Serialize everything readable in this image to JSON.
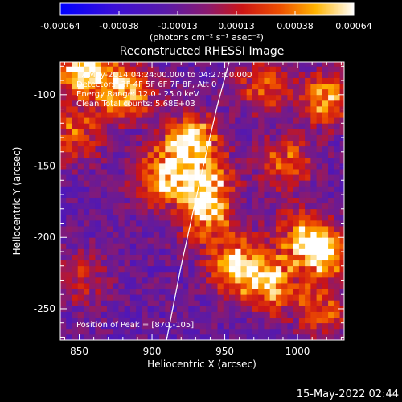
{
  "colorbar": {
    "ticks": [
      "-0.00064",
      "-0.00038",
      "-0.00013",
      "0.00013",
      "0.00038",
      "0.00064"
    ],
    "units": "(photons cm⁻² s⁻¹ asec⁻²)"
  },
  "plot": {
    "title": "Reconstructed RHESSI Image",
    "annotations": [
      "7-May-2014 04:24:00.000 to 04:27:00.000",
      "Detectors: 3F 4F 5F 6F 7F 8F, Att 0",
      "Energy Range: 12.0 - 25.0 keV",
      "Clean    Total counts: 5.68E+03"
    ],
    "peak_label": "Position of Peak = [870,-105]"
  },
  "footer": {
    "timestamp": "15-May-2022 02:44"
  },
  "chart_data": {
    "type": "heatmap",
    "title": "Reconstructed RHESSI Image",
    "xlabel": "Heliocentric X (arcsec)",
    "ylabel": "Heliocentric Y (arcsec)",
    "xlim": [
      837,
      1032
    ],
    "ylim": [
      -272,
      -77
    ],
    "xticks": [
      850,
      900,
      950,
      1000
    ],
    "yticks": [
      -250,
      -200,
      -150,
      -100
    ],
    "colorbar_range": [
      -0.00064,
      0.00064
    ],
    "colormap": "blue-purple-red-yellow-white",
    "limb_curve_points": [
      [
        910,
        -272
      ],
      [
        920,
        -220
      ],
      [
        933,
        -160
      ],
      [
        945,
        -107
      ],
      [
        953,
        -77
      ]
    ],
    "emission_blobs": [
      {
        "x": 852,
        "y": -85,
        "value": 0.00064
      },
      {
        "x": 880,
        "y": -100,
        "value": 0.0005
      },
      {
        "x": 845,
        "y": -130,
        "value": 0.0003
      },
      {
        "x": 925,
        "y": -135,
        "value": 0.00064
      },
      {
        "x": 905,
        "y": -160,
        "value": 0.0005
      },
      {
        "x": 935,
        "y": -165,
        "value": 0.00055
      },
      {
        "x": 935,
        "y": -190,
        "value": 0.0004
      },
      {
        "x": 957,
        "y": -222,
        "value": 0.00058
      },
      {
        "x": 980,
        "y": -235,
        "value": 0.00048
      },
      {
        "x": 1015,
        "y": -212,
        "value": 0.00055
      },
      {
        "x": 1000,
        "y": -200,
        "value": 0.0003
      },
      {
        "x": 975,
        "y": -95,
        "value": 0.0003
      },
      {
        "x": 1018,
        "y": -105,
        "value": 0.00045
      },
      {
        "x": 990,
        "y": -150,
        "value": 0.00032
      },
      {
        "x": 1015,
        "y": -255,
        "value": 0.0003
      },
      {
        "x": 850,
        "y": -230,
        "value": 0.00015
      }
    ]
  }
}
